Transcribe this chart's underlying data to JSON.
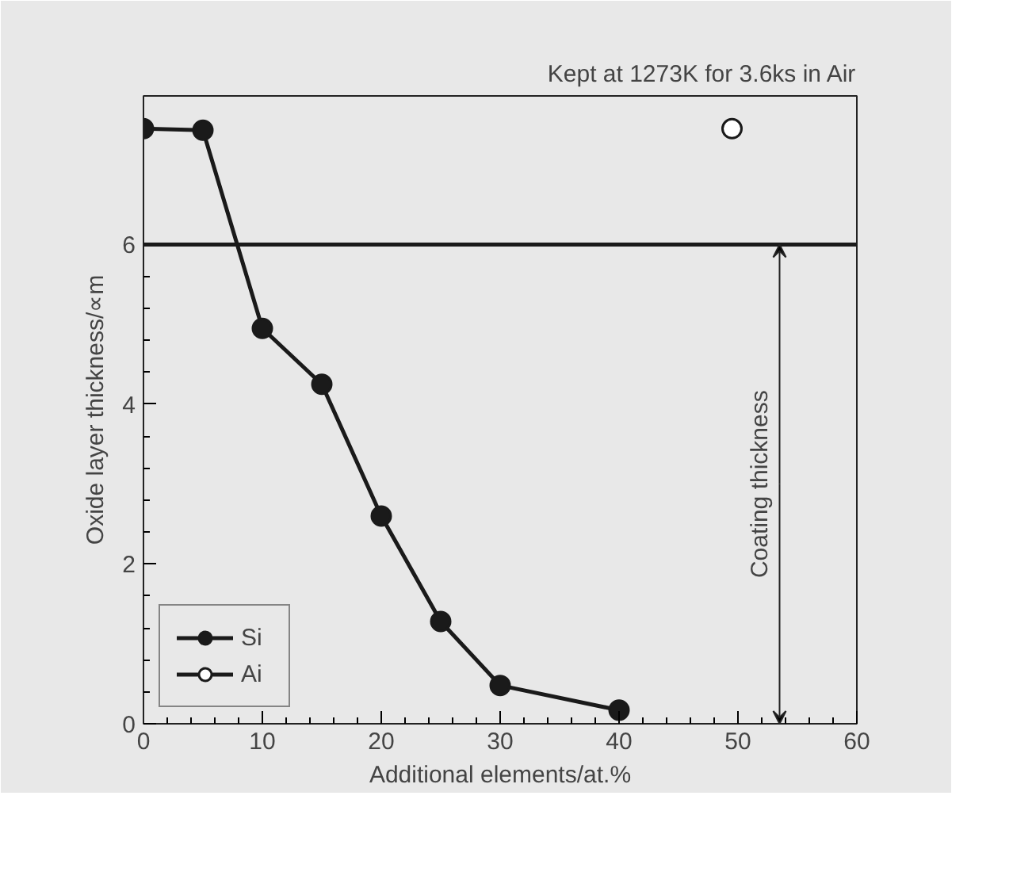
{
  "chart_data": {
    "type": "line",
    "title": "Kept at 1273K for 3.6ks in Air",
    "xlabel": "Additional elements/at.%",
    "ylabel": "Oxide layer thickness/∝m",
    "xlim": [
      0,
      60
    ],
    "xticks": [
      0,
      10,
      20,
      30,
      40,
      50,
      60
    ],
    "ylim": [
      0,
      7.86
    ],
    "yticks": [
      0,
      2,
      4,
      6
    ],
    "series": [
      {
        "name": "Si",
        "color": "#1a1a1a",
        "x": [
          0,
          5,
          10,
          15,
          20,
          25,
          30,
          40
        ],
        "values": [
          7.45,
          7.43,
          4.95,
          4.25,
          2.6,
          1.28,
          0.48,
          0.17
        ]
      },
      {
        "name": "Ai",
        "color": "#ffffff",
        "x": [
          49.5
        ],
        "values": [
          7.45
        ]
      }
    ],
    "ref_lines": [
      {
        "axis": "y",
        "value": 6,
        "label": null,
        "color": "#1a1a1a"
      }
    ],
    "annotations": [
      {
        "text": "Coating thickness",
        "x": 53.5,
        "y": 6
      }
    ],
    "marker": "circle",
    "legend": "bottom left",
    "grid": false
  }
}
